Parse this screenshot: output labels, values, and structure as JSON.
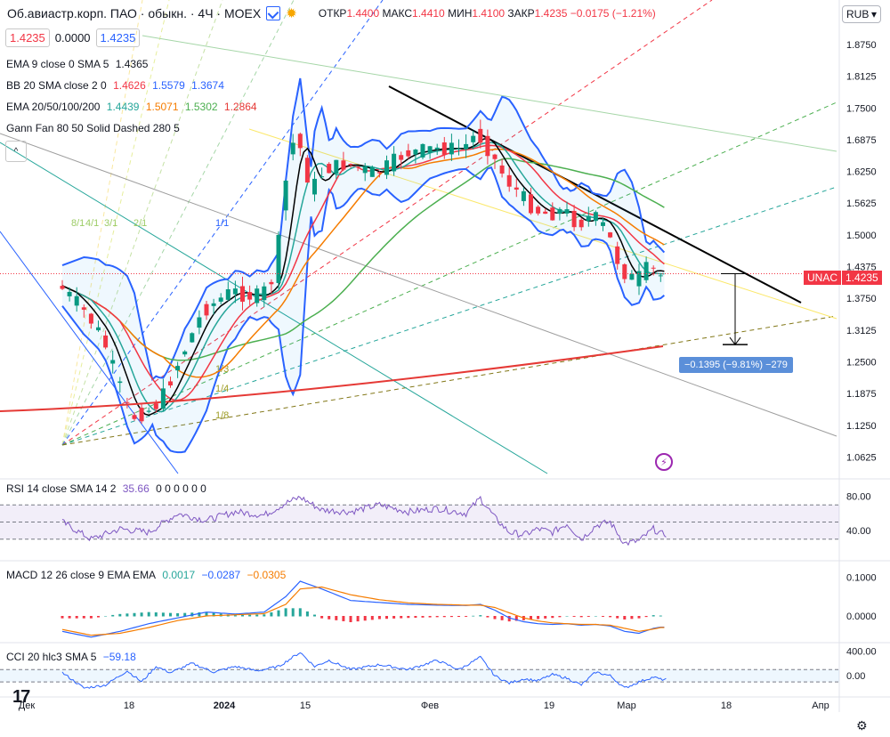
{
  "header": {
    "title": "Об.авиастр.корп. ПАО · обыкн. · 4Ч · MOEX",
    "o_label": "ОТКР",
    "o_val": "1.4400",
    "h_label": "МАКС",
    "h_val": "1.4410",
    "l_label": "МИН",
    "l_val": "1.4100",
    "c_label": "ЗАКР",
    "c_val": "1.4235",
    "change": "−0.0175 (−1.21%)"
  },
  "price_boxes": {
    "bid": "1.4235",
    "spread": "0.0000",
    "ask": "1.4235"
  },
  "currency": "RUB",
  "toggle_label": "^",
  "indicators": {
    "ema9": {
      "label": "EMA 9 close 0 SMA 5",
      "v1": "1.4365"
    },
    "bb": {
      "label": "BB 20 SMA close 2 0",
      "v1": "1.4626",
      "v2": "1.5579",
      "v3": "1.3674"
    },
    "ema_multi": {
      "label": "EMA 20/50/100/200",
      "v1": "1.4439",
      "v2": "1.5071",
      "v3": "1.5302",
      "v4": "1.2864"
    },
    "gann": {
      "label": "Gann Fan 80 50 Solid Dashed 280 5"
    },
    "rsi": {
      "label": "RSI 14 close SMA 14 2",
      "v1": "35.66",
      "v2": "0 0 0 0 0 0"
    },
    "macd": {
      "label": "MACD 12 26 close 9 EMA EMA",
      "v1": "0.0017",
      "v2": "−0.0287",
      "v3": "−0.0305"
    },
    "cci": {
      "label": "CCI 20 hlc3 SMA 5",
      "v1": "−59.18"
    }
  },
  "ticker_tag": {
    "name": "UNAC",
    "price": "1.4235"
  },
  "measure_label": "−0.1395 (−9.81%) −279",
  "gann_labels": [
    "8/1",
    "4/1",
    "3/1",
    "2/1",
    "1/1",
    "1/3",
    "1/4",
    "1/8"
  ],
  "logo": "17",
  "colors": {
    "up": "#089981",
    "down": "#f23645",
    "bb": "#2962ff",
    "ema9": "#000000",
    "ema20": "#26a69a",
    "ema50": "#f23645",
    "ema100": "#f57c00",
    "ema200_green": "#4caf50",
    "ema200": "#e53935",
    "rsi": "#7e57c2",
    "macd": "#2962ff",
    "signal": "#f57c00",
    "cci": "#2962ff"
  },
  "chart_data": {
    "type": "candlestick",
    "price_axis_ticks": [
      "1.8750",
      "1.8125",
      "1.7500",
      "1.6875",
      "1.6250",
      "1.5625",
      "1.5000",
      "1.4375",
      "1.3750",
      "1.3125",
      "1.2500",
      "1.1875",
      "1.1250",
      "1.0625"
    ],
    "rsi_axis_ticks": [
      "80.00",
      "40.00"
    ],
    "macd_axis_ticks": [
      "0.1000",
      "0.0000"
    ],
    "cci_axis_ticks": [
      "400.00",
      "0.00"
    ],
    "time_axis_ticks": [
      "Дек",
      "18",
      "2024",
      "15",
      "Фев",
      "19",
      "Мар",
      "18",
      "Апр"
    ],
    "ylim": [
      1.03,
      1.91
    ],
    "last_price": 1.4235,
    "measure": {
      "from": 1.4235,
      "to": 1.284,
      "change": -0.1395
    },
    "close_path": [
      [
        0,
        1.4
      ],
      [
        3,
        1.36
      ],
      [
        6,
        1.3
      ],
      [
        8,
        1.22
      ],
      [
        10,
        1.14
      ],
      [
        12,
        1.15
      ],
      [
        14,
        1.17
      ],
      [
        16,
        1.23
      ],
      [
        18,
        1.29
      ],
      [
        20,
        1.35
      ],
      [
        22,
        1.37
      ],
      [
        24,
        1.39
      ],
      [
        26,
        1.38
      ],
      [
        28,
        1.38
      ],
      [
        30,
        1.42
      ],
      [
        31,
        1.55
      ],
      [
        32,
        1.66
      ],
      [
        33,
        1.7
      ],
      [
        34,
        1.64
      ],
      [
        35,
        1.59
      ],
      [
        37,
        1.63
      ],
      [
        40,
        1.64
      ],
      [
        44,
        1.62
      ],
      [
        48,
        1.66
      ],
      [
        52,
        1.67
      ],
      [
        56,
        1.67
      ],
      [
        58,
        1.7
      ],
      [
        60,
        1.66
      ],
      [
        62,
        1.61
      ],
      [
        64,
        1.58
      ],
      [
        66,
        1.55
      ],
      [
        68,
        1.54
      ],
      [
        70,
        1.55
      ],
      [
        72,
        1.52
      ],
      [
        74,
        1.54
      ],
      [
        76,
        1.51
      ],
      [
        78,
        1.43
      ],
      [
        80,
        1.41
      ],
      [
        82,
        1.44
      ],
      [
        83,
        1.42
      ]
    ],
    "rsi_path": [
      [
        0,
        50
      ],
      [
        4,
        30
      ],
      [
        8,
        42
      ],
      [
        12,
        38
      ],
      [
        16,
        60
      ],
      [
        20,
        52
      ],
      [
        24,
        62
      ],
      [
        28,
        58
      ],
      [
        31,
        72
      ],
      [
        33,
        79
      ],
      [
        36,
        64
      ],
      [
        40,
        62
      ],
      [
        44,
        70
      ],
      [
        48,
        62
      ],
      [
        52,
        66
      ],
      [
        56,
        60
      ],
      [
        58,
        78
      ],
      [
        60,
        55
      ],
      [
        62,
        38
      ],
      [
        64,
        35
      ],
      [
        66,
        42
      ],
      [
        68,
        38
      ],
      [
        70,
        48
      ],
      [
        72,
        30
      ],
      [
        74,
        46
      ],
      [
        76,
        50
      ],
      [
        78,
        25
      ],
      [
        80,
        28
      ],
      [
        82,
        42
      ],
      [
        83,
        36
      ]
    ],
    "macd_path": [
      [
        0,
        -0.04
      ],
      [
        4,
        -0.055
      ],
      [
        8,
        -0.04
      ],
      [
        12,
        -0.02
      ],
      [
        16,
        -0.005
      ],
      [
        20,
        0.01
      ],
      [
        24,
        0.005
      ],
      [
        28,
        0.01
      ],
      [
        31,
        0.05
      ],
      [
        33,
        0.09
      ],
      [
        36,
        0.07
      ],
      [
        40,
        0.04
      ],
      [
        44,
        0.035
      ],
      [
        48,
        0.03
      ],
      [
        52,
        0.028
      ],
      [
        56,
        0.027
      ],
      [
        58,
        0.03
      ],
      [
        60,
        0.015
      ],
      [
        62,
        -0.005
      ],
      [
        64,
        -0.015
      ],
      [
        66,
        -0.02
      ],
      [
        68,
        -0.022
      ],
      [
        70,
        -0.02
      ],
      [
        72,
        -0.024
      ],
      [
        74,
        -0.022
      ],
      [
        76,
        -0.026
      ],
      [
        78,
        -0.04
      ],
      [
        80,
        -0.045
      ],
      [
        82,
        -0.032
      ],
      [
        83,
        -0.029
      ]
    ],
    "signal_path": [
      [
        0,
        -0.035
      ],
      [
        4,
        -0.05
      ],
      [
        8,
        -0.045
      ],
      [
        12,
        -0.03
      ],
      [
        16,
        -0.012
      ],
      [
        20,
        0.0
      ],
      [
        24,
        0.003
      ],
      [
        28,
        0.006
      ],
      [
        31,
        0.03
      ],
      [
        33,
        0.07
      ],
      [
        36,
        0.075
      ],
      [
        40,
        0.055
      ],
      [
        44,
        0.042
      ],
      [
        48,
        0.034
      ],
      [
        52,
        0.03
      ],
      [
        56,
        0.028
      ],
      [
        58,
        0.028
      ],
      [
        60,
        0.022
      ],
      [
        62,
        0.008
      ],
      [
        64,
        -0.005
      ],
      [
        66,
        -0.013
      ],
      [
        68,
        -0.018
      ],
      [
        70,
        -0.02
      ],
      [
        72,
        -0.022
      ],
      [
        74,
        -0.022
      ],
      [
        76,
        -0.024
      ],
      [
        78,
        -0.032
      ],
      [
        80,
        -0.04
      ],
      [
        82,
        -0.034
      ],
      [
        83,
        -0.03
      ]
    ],
    "cci_path": [
      [
        0,
        50
      ],
      [
        3,
        -200
      ],
      [
        6,
        -150
      ],
      [
        9,
        80
      ],
      [
        11,
        -100
      ],
      [
        13,
        150
      ],
      [
        15,
        50
      ],
      [
        18,
        200
      ],
      [
        21,
        60
      ],
      [
        24,
        150
      ],
      [
        27,
        80
      ],
      [
        30,
        150
      ],
      [
        33,
        380
      ],
      [
        35,
        150
      ],
      [
        37,
        250
      ],
      [
        40,
        100
      ],
      [
        44,
        180
      ],
      [
        48,
        100
      ],
      [
        52,
        250
      ],
      [
        55,
        100
      ],
      [
        58,
        300
      ],
      [
        60,
        0
      ],
      [
        62,
        -120
      ],
      [
        64,
        -50
      ],
      [
        66,
        -80
      ],
      [
        68,
        20
      ],
      [
        70,
        -40
      ],
      [
        72,
        -150
      ],
      [
        74,
        60
      ],
      [
        76,
        0
      ],
      [
        78,
        -200
      ],
      [
        80,
        -100
      ],
      [
        82,
        -20
      ],
      [
        83,
        -59
      ]
    ]
  }
}
